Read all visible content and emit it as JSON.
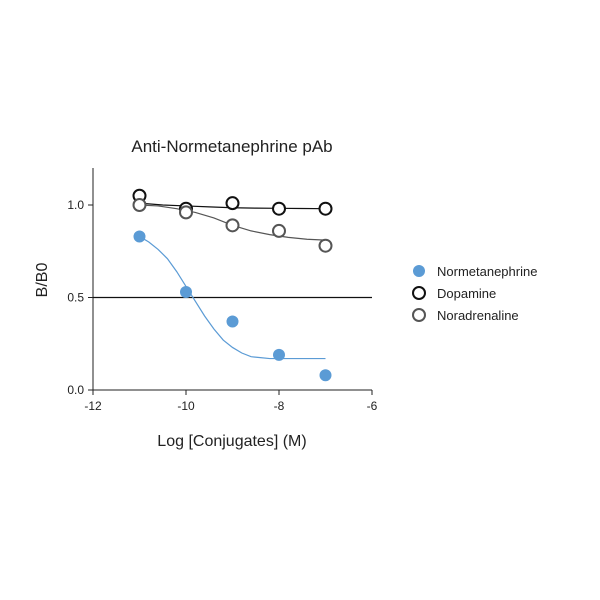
{
  "chart_data": {
    "type": "scatter",
    "title": "Anti-Normetanephrine pAb",
    "xlabel": "Log [Conjugates] (M)",
    "ylabel": "B/B0",
    "xlim": [
      -12,
      -6
    ],
    "ylim": [
      0,
      1.2
    ],
    "x_ticks": [
      -12,
      -10,
      -8,
      -6
    ],
    "x_tick_labels": [
      "-12",
      "-10",
      "-8",
      "-6"
    ],
    "y_ticks": [
      0.0,
      0.5,
      1.0
    ],
    "y_tick_labels": [
      "0.0",
      "0.5",
      "1.0"
    ],
    "reference_line_y": 0.5,
    "grid": false,
    "legend_position": "right",
    "series": [
      {
        "name": "Normetanephrine",
        "color": "#5b9bd5",
        "marker": "filled-circle",
        "x": [
          -11,
          -10,
          -9,
          -8,
          -7
        ],
        "y": [
          0.83,
          0.53,
          0.37,
          0.19,
          0.08
        ],
        "curve": {
          "x": [
            -11,
            -10.8,
            -10.6,
            -10.4,
            -10.2,
            -10,
            -9.8,
            -9.6,
            -9.4,
            -9.2,
            -9,
            -8.8,
            -8.6,
            -8.4,
            -8.2,
            -8,
            -7.8,
            -7.6,
            -7.4,
            -7.2,
            -7
          ],
          "y": [
            0.83,
            0.8,
            0.76,
            0.71,
            0.64,
            0.56,
            0.48,
            0.4,
            0.33,
            0.27,
            0.23,
            0.2,
            0.18,
            0.175,
            0.17,
            0.17,
            0.17,
            0.17,
            0.17,
            0.17,
            0.17
          ]
        }
      },
      {
        "name": "Dopamine",
        "color": "#111111",
        "marker": "open-circle",
        "x": [
          -11,
          -10,
          -9,
          -8,
          -7
        ],
        "y": [
          1.05,
          0.98,
          1.01,
          0.98,
          0.98
        ],
        "curve": {
          "x": [
            -11,
            -10.5,
            -10,
            -9.5,
            -9,
            -8.5,
            -8,
            -7.5,
            -7
          ],
          "y": [
            1.01,
            1.0,
            0.995,
            0.99,
            0.985,
            0.983,
            0.982,
            0.981,
            0.98
          ]
        }
      },
      {
        "name": "Noradrenaline",
        "color": "#555555",
        "marker": "open-circle",
        "x": [
          -11,
          -10,
          -9,
          -8,
          -7
        ],
        "y": [
          1.0,
          0.96,
          0.89,
          0.86,
          0.78
        ],
        "curve": {
          "x": [
            -11,
            -10.6,
            -10.2,
            -9.8,
            -9.4,
            -9,
            -8.6,
            -8.2,
            -7.8,
            -7.4,
            -7
          ],
          "y": [
            1.0,
            0.995,
            0.98,
            0.96,
            0.93,
            0.89,
            0.86,
            0.84,
            0.825,
            0.815,
            0.81
          ]
        }
      }
    ]
  }
}
